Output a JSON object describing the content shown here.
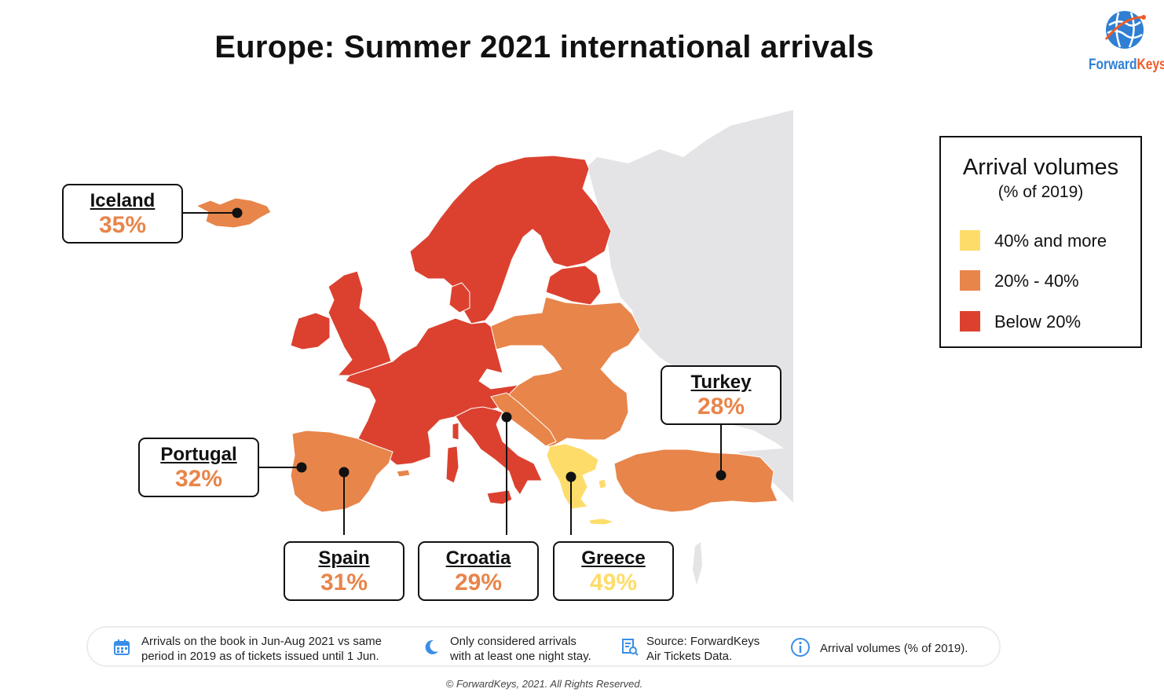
{
  "title": "Europe: Summer 2021 international arrivals",
  "logo": {
    "brand_part1": "Forward",
    "brand_part2": "Keys",
    "icon": "globe-icon"
  },
  "colors": {
    "high": "#fddc6a",
    "mid": "#e8854a",
    "low": "#dc4130",
    "other": "#e4e3e5",
    "text_orange": "#e8854a",
    "text_yellow": "#fddc6a",
    "brand_blue": "#2f7fd4",
    "brand_orange": "#ef5a27"
  },
  "legend": {
    "title": "Arrival volumes",
    "subtitle": "(% of 2019)",
    "items": [
      {
        "label": "40% and more",
        "color": "#fddc6a"
      },
      {
        "label": "20% - 40%",
        "color": "#e8854a"
      },
      {
        "label": "Below 20%",
        "color": "#dc4130"
      }
    ]
  },
  "callouts": [
    {
      "name": "Iceland",
      "value": "35%",
      "category": "mid"
    },
    {
      "name": "Portugal",
      "value": "32%",
      "category": "mid"
    },
    {
      "name": "Spain",
      "value": "31%",
      "category": "mid"
    },
    {
      "name": "Croatia",
      "value": "29%",
      "category": "mid"
    },
    {
      "name": "Greece",
      "value": "49%",
      "category": "high"
    },
    {
      "name": "Turkey",
      "value": "28%",
      "category": "mid"
    }
  ],
  "notes": [
    {
      "icon": "calendar-icon",
      "line1": "Arrivals on the book in Jun-Aug 2021 vs same",
      "line2": "period in 2019 as of tickets issued until 1 Jun."
    },
    {
      "icon": "moon-icon",
      "line1": "Only considered arrivals",
      "line2": "with at least one night stay."
    },
    {
      "icon": "document-search-icon",
      "line1": "Source: ForwardKeys",
      "line2": "Air Tickets Data."
    },
    {
      "icon": "info-icon",
      "line1": "Arrival volumes (% of 2019).",
      "line2": ""
    }
  ],
  "copyright": "© ForwardKeys, 2021. All Rights Reserved."
}
